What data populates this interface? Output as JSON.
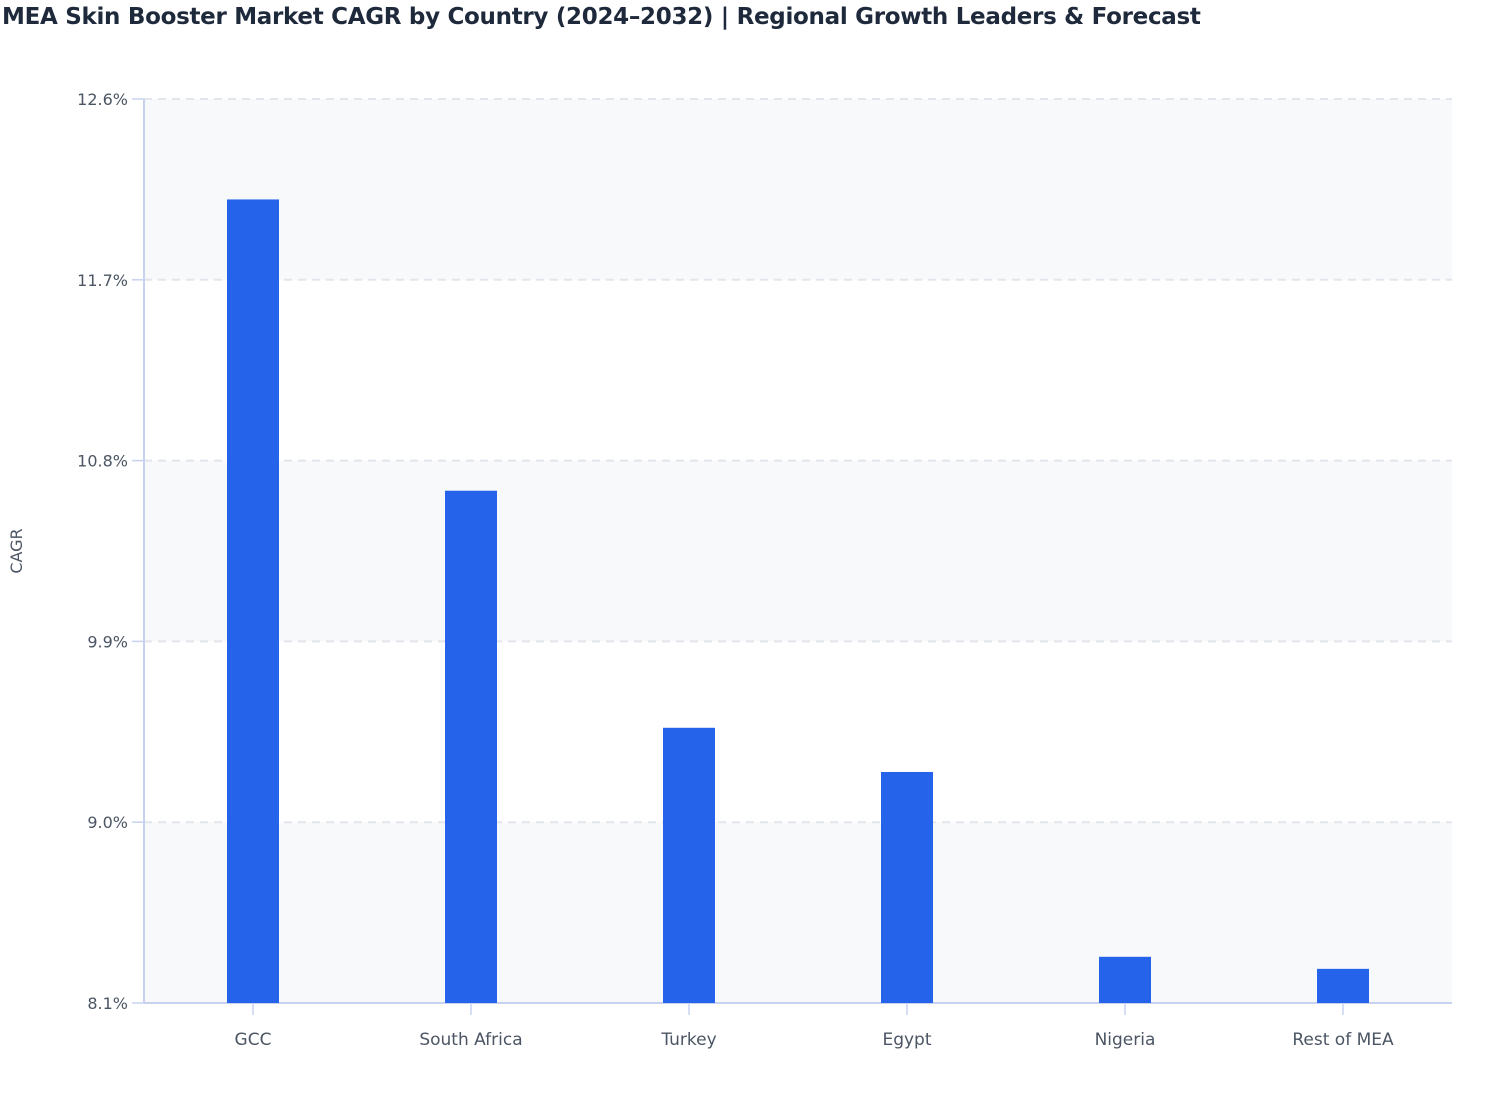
{
  "chart_data": {
    "type": "bar",
    "title": "MEA Skin Booster Market CAGR by Country (2024–2032) | Regional Growth Leaders & Forecast",
    "xlabel": "",
    "ylabel": "CAGR",
    "categories": [
      "GCC",
      "South Africa",
      "Turkey",
      "Egypt",
      "Nigeria",
      "Rest of MEA"
    ],
    "values": [
      12.1,
      10.65,
      9.47,
      9.25,
      8.33,
      8.27
    ],
    "ylim": [
      8.1,
      12.6
    ],
    "yticks": [
      8.1,
      9.0,
      9.9,
      10.8,
      11.7,
      12.6
    ],
    "ytick_labels": [
      "8.1%",
      "9.0%",
      "9.9%",
      "10.8%",
      "11.7%",
      "12.6%"
    ],
    "grid": true,
    "bar_color": "#2563eb"
  }
}
